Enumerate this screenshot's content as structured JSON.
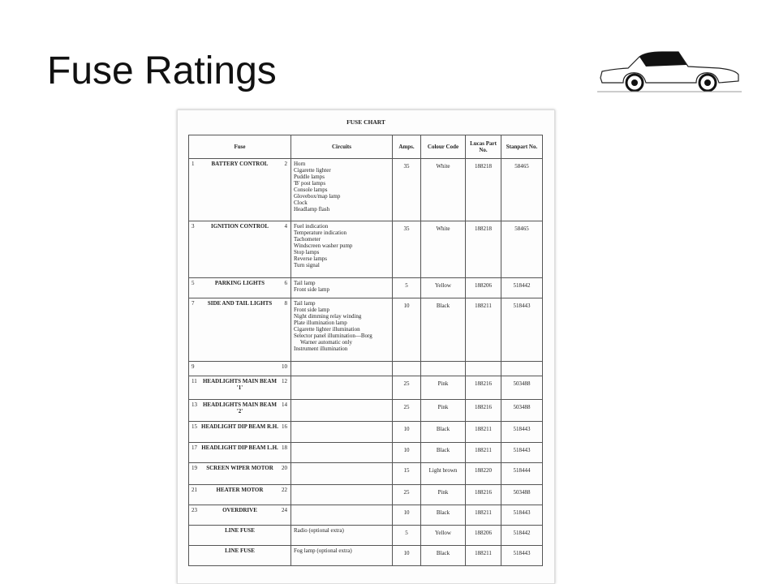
{
  "slide": {
    "title": "Fuse Ratings"
  },
  "document": {
    "title": "FUSE CHART",
    "headers": {
      "fuse": "Fuse",
      "circuits": "Circuits",
      "amps": "Amps.",
      "colour": "Colour Code",
      "lucas": "Lucas Part No.",
      "stanpart": "Stanpart No."
    },
    "rows": [
      {
        "n1": "1",
        "name": "BATTERY CONTROL",
        "n2": "2",
        "circuits": [
          "Horn",
          "Cigarette lighter",
          "Puddle lamps",
          "'B' post lamps",
          "Console lamps",
          "Glovebox/map lamp",
          "Clock",
          "Headlamp flash"
        ],
        "amps": "35",
        "colour": "White",
        "lucas": "188218",
        "stanpart": "58465"
      },
      {
        "n1": "3",
        "name": "IGNITION CONTROL",
        "n2": "4",
        "circuits": [
          "Fuel indication",
          "Temperature indication",
          "Tachometer",
          "Windscreen washer pump",
          "Stop lamps",
          "Reverse lamps",
          "Turn signal"
        ],
        "amps": "35",
        "colour": "White",
        "lucas": "188218",
        "stanpart": "58465"
      },
      {
        "n1": "5",
        "name": "PARKING LIGHTS",
        "n2": "6",
        "circuits": [
          "Tail lamp",
          "Front side lamp"
        ],
        "amps": "5",
        "colour": "Yellow",
        "lucas": "188206",
        "stanpart": "518442"
      },
      {
        "n1": "7",
        "name": "SIDE AND TAIL LIGHTS",
        "n2": "8",
        "circuits": [
          "Tail lamp",
          "Front side lamp",
          "Night dimming relay winding",
          "Plate illumination lamp",
          "Cigarette lighter illumination",
          "Selector panel illumination—Borg",
          "Warner automatic only",
          "Instrument illumination"
        ],
        "amps": "10",
        "colour": "Black",
        "lucas": "188211",
        "stanpart": "518443"
      },
      {
        "n1": "9",
        "name": "",
        "n2": "10",
        "circuits": [],
        "amps": "",
        "colour": "",
        "lucas": "",
        "stanpart": ""
      },
      {
        "n1": "11",
        "name": "HEADLIGHTS MAIN BEAM '1'",
        "n2": "12",
        "circuits": [],
        "amps": "25",
        "colour": "Pink",
        "lucas": "188216",
        "stanpart": "503488"
      },
      {
        "n1": "13",
        "name": "HEADLIGHTS MAIN BEAM '2'",
        "n2": "14",
        "circuits": [],
        "amps": "25",
        "colour": "Pink",
        "lucas": "188216",
        "stanpart": "503488"
      },
      {
        "n1": "15",
        "name": "HEADLIGHT DIP BEAM R.H.",
        "n2": "16",
        "circuits": [],
        "amps": "10",
        "colour": "Black",
        "lucas": "188211",
        "stanpart": "518443"
      },
      {
        "n1": "17",
        "name": "HEADLIGHT DIP BEAM L.H.",
        "n2": "18",
        "circuits": [],
        "amps": "10",
        "colour": "Black",
        "lucas": "188211",
        "stanpart": "518443"
      },
      {
        "n1": "19",
        "name": "SCREEN WIPER MOTOR",
        "n2": "20",
        "circuits": [],
        "amps": "15",
        "colour": "Light brown",
        "lucas": "188220",
        "stanpart": "518444"
      },
      {
        "n1": "21",
        "name": "HEATER MOTOR",
        "n2": "22",
        "circuits": [],
        "amps": "25",
        "colour": "Pink",
        "lucas": "188216",
        "stanpart": "503488"
      },
      {
        "n1": "23",
        "name": "OVERDRIVE",
        "n2": "24",
        "circuits": [],
        "amps": "10",
        "colour": "Black",
        "lucas": "188211",
        "stanpart": "518443"
      },
      {
        "n1": "",
        "name": "LINE FUSE",
        "n2": "",
        "circuits": [
          "Radio (optional extra)"
        ],
        "amps": "5",
        "colour": "Yellow",
        "lucas": "188206",
        "stanpart": "518442"
      },
      {
        "n1": "",
        "name": "LINE FUSE",
        "n2": "",
        "circuits": [
          "Fog lamp (optional extra)"
        ],
        "amps": "10",
        "colour": "Black",
        "lucas": "188211",
        "stanpart": "518443"
      }
    ]
  }
}
